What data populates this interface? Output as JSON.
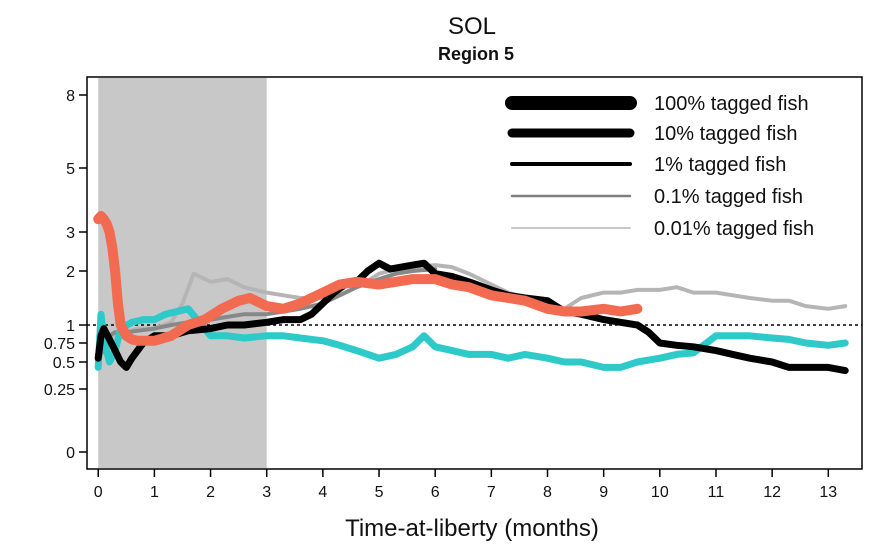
{
  "chart_data": {
    "type": "line",
    "title": "SOL",
    "subtitle": "Region 5",
    "xlabel": "Time-at-liberty (months)",
    "ylabel": "",
    "xlim": [
      -0.2,
      13.6
    ],
    "x_ticks": [
      0,
      1,
      2,
      3,
      4,
      5,
      6,
      7,
      8,
      9,
      10,
      11,
      12,
      13
    ],
    "y_ticks": [
      {
        "value": 0,
        "label": "0"
      },
      {
        "value": 0.25,
        "label": "0.25"
      },
      {
        "value": 0.5,
        "label": "0.5"
      },
      {
        "value": 0.75,
        "label": "0.75"
      },
      {
        "value": 1,
        "label": "1"
      },
      {
        "value": 2,
        "label": "2"
      },
      {
        "value": 3,
        "label": "3"
      },
      {
        "value": 5,
        "label": "5"
      },
      {
        "value": 8,
        "label": "8"
      }
    ],
    "reference_line": 1,
    "shaded_region": [
      0,
      3
    ],
    "shaded_color": "#c8c8c8",
    "grid": false,
    "legend_position": "top-right",
    "legend": [
      {
        "label": "100% tagged fish",
        "color": "#000000",
        "width": 14
      },
      {
        "label": "10% tagged fish",
        "color": "#000000",
        "width": 9
      },
      {
        "label": "1% tagged fish",
        "color": "#000000",
        "width": 4
      },
      {
        "label": "0.1% tagged fish",
        "color": "#7f7f7f",
        "width": 2.5
      },
      {
        "label": "0.01% tagged fish",
        "color": "#c8c8c8",
        "width": 2
      }
    ],
    "series": [
      {
        "color": "#b5b5b5",
        "width": 4,
        "x": [
          0,
          0.1,
          0.2,
          0.3,
          0.5,
          0.7,
          1.0,
          1.3,
          1.5,
          1.7,
          2.0,
          2.3,
          2.6,
          3.0,
          3.3,
          3.6,
          4.0,
          4.3,
          4.7,
          5.0,
          5.3,
          5.6,
          6.0,
          6.3,
          6.6,
          7.0,
          7.3,
          7.6,
          8.0,
          8.3,
          8.6,
          9.0,
          9.3,
          9.6,
          10.0,
          10.3,
          10.6,
          11.0,
          11.3,
          11.6,
          12.0,
          12.3,
          12.6,
          13.0,
          13.3
        ],
        "y": [
          0.55,
          0.65,
          0.8,
          0.9,
          0.9,
          0.95,
          0.95,
          1.05,
          1.4,
          1.95,
          1.8,
          1.85,
          1.7,
          1.6,
          1.55,
          1.5,
          1.5,
          1.55,
          1.75,
          1.95,
          2.05,
          2.1,
          2.15,
          2.1,
          1.95,
          1.75,
          1.6,
          1.5,
          1.4,
          1.3,
          1.5,
          1.6,
          1.6,
          1.65,
          1.65,
          1.7,
          1.6,
          1.6,
          1.55,
          1.5,
          1.45,
          1.45,
          1.35,
          1.3,
          1.35
        ]
      },
      {
        "color": "#888888",
        "width": 4,
        "x": [
          0,
          0.1,
          0.2,
          0.3,
          0.5,
          0.7,
          1.0,
          1.3,
          1.6,
          2.0,
          2.3,
          2.6,
          3.0,
          3.3,
          3.6,
          4.0,
          4.3,
          4.6,
          5.0,
          5.3,
          5.6,
          6.0
        ],
        "y": [
          0.5,
          0.7,
          0.85,
          0.9,
          0.9,
          0.92,
          0.95,
          1.0,
          1.05,
          1.1,
          1.15,
          1.2,
          1.2,
          1.25,
          1.3,
          1.4,
          1.55,
          1.7,
          1.85,
          1.95,
          2.0,
          2.05
        ]
      },
      {
        "color": "#2ec9c9",
        "width": 7,
        "x": [
          0,
          0.05,
          0.1,
          0.2,
          0.3,
          0.4,
          0.6,
          0.8,
          1.0,
          1.2,
          1.4,
          1.6,
          2.0,
          2.3,
          2.6,
          3.0,
          3.3,
          3.6,
          4.0,
          4.3,
          4.6,
          5.0,
          5.3,
          5.6,
          5.8,
          6.0,
          6.3,
          6.6,
          7.0,
          7.3,
          7.6,
          8.0,
          8.3,
          8.6,
          9.0,
          9.3,
          9.6,
          10.0,
          10.3,
          10.6,
          11.0,
          11.3,
          11.6,
          12.0,
          12.3,
          12.6,
          13.0,
          13.3
        ],
        "y": [
          0.45,
          1.2,
          0.8,
          0.5,
          0.65,
          0.95,
          1.05,
          1.1,
          1.1,
          1.2,
          1.25,
          1.3,
          0.85,
          0.85,
          0.82,
          0.85,
          0.85,
          0.82,
          0.78,
          0.72,
          0.65,
          0.55,
          0.6,
          0.7,
          0.85,
          0.7,
          0.65,
          0.6,
          0.6,
          0.55,
          0.6,
          0.55,
          0.5,
          0.5,
          0.45,
          0.45,
          0.5,
          0.55,
          0.6,
          0.62,
          0.85,
          0.85,
          0.85,
          0.82,
          0.8,
          0.75,
          0.72,
          0.75
        ]
      },
      {
        "color": "#000000",
        "width": 7,
        "x": [
          0,
          0.05,
          0.1,
          0.2,
          0.3,
          0.4,
          0.5,
          0.6,
          0.8,
          1.0,
          1.3,
          1.6,
          2.0,
          2.3,
          2.6,
          3.0,
          3.3,
          3.6,
          3.8,
          4.0,
          4.2,
          4.4,
          4.6,
          4.8,
          5.0,
          5.2,
          5.4,
          5.6,
          5.8,
          6.0,
          6.3,
          6.6,
          7.0,
          7.3,
          7.6,
          8.0,
          8.3,
          8.6,
          9.0,
          9.3,
          9.6,
          9.8,
          10.0,
          10.3,
          10.6,
          11.0,
          11.3,
          11.6,
          12.0,
          12.3,
          12.6,
          13.0,
          13.3
        ],
        "y": [
          0.55,
          0.85,
          0.95,
          0.8,
          0.65,
          0.5,
          0.45,
          0.55,
          0.75,
          0.85,
          0.85,
          0.92,
          0.95,
          1.0,
          1.0,
          1.05,
          1.1,
          1.1,
          1.2,
          1.4,
          1.6,
          1.75,
          1.8,
          2.0,
          2.2,
          2.05,
          2.1,
          2.15,
          2.2,
          1.95,
          1.9,
          1.8,
          1.65,
          1.55,
          1.5,
          1.45,
          1.25,
          1.2,
          1.1,
          1.05,
          1.0,
          0.9,
          0.75,
          0.72,
          0.7,
          0.65,
          0.6,
          0.55,
          0.5,
          0.45,
          0.45,
          0.45,
          0.42
        ]
      },
      {
        "color": "#f26a50",
        "width": 10,
        "x": [
          0,
          0.05,
          0.1,
          0.15,
          0.2,
          0.25,
          0.3,
          0.35,
          0.4,
          0.5,
          0.6,
          0.7,
          0.8,
          1.0,
          1.3,
          1.6,
          1.9,
          2.2,
          2.5,
          2.7,
          3.0,
          3.3,
          3.6,
          3.8,
          4.0,
          4.3,
          4.6,
          5.0,
          5.3,
          5.6,
          6.0,
          6.3,
          6.6,
          7.0,
          7.3,
          7.6,
          8.0,
          8.3,
          8.6,
          9.0,
          9.3,
          9.6
        ],
        "y": [
          3.4,
          3.5,
          3.4,
          3.25,
          3.0,
          2.6,
          2.0,
          1.4,
          1.0,
          0.85,
          0.8,
          0.78,
          0.78,
          0.78,
          0.85,
          1.0,
          1.1,
          1.3,
          1.45,
          1.5,
          1.35,
          1.3,
          1.4,
          1.5,
          1.6,
          1.75,
          1.8,
          1.75,
          1.8,
          1.85,
          1.85,
          1.75,
          1.7,
          1.55,
          1.5,
          1.45,
          1.3,
          1.25,
          1.25,
          1.3,
          1.25,
          1.3
        ]
      }
    ]
  }
}
